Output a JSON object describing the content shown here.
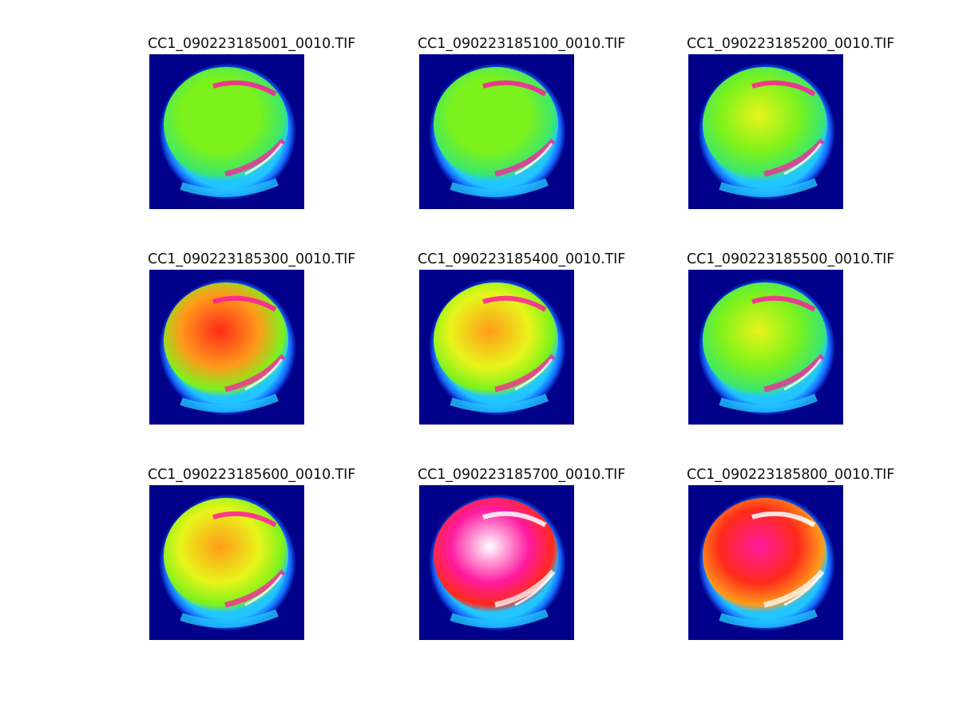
{
  "panels": [
    {
      "title": "CC1_090223185001_0010.TIF",
      "palette": "green"
    },
    {
      "title": "CC1_090223185100_0010.TIF",
      "palette": "green"
    },
    {
      "title": "CC1_090223185200_0010.TIF",
      "palette": "yellowgreen"
    },
    {
      "title": "CC1_090223185300_0010.TIF",
      "palette": "red"
    },
    {
      "title": "CC1_090223185400_0010.TIF",
      "palette": "orange"
    },
    {
      "title": "CC1_090223185500_0010.TIF",
      "palette": "yellowgreen"
    },
    {
      "title": "CC1_090223185600_0010.TIF",
      "palette": "orange"
    },
    {
      "title": "CC1_090223185700_0010.TIF",
      "palette": "white"
    },
    {
      "title": "CC1_090223185800_0010.TIF",
      "palette": "redpink"
    }
  ],
  "colors": {
    "background": "#01008a",
    "rim_cyan": "#22c6ff",
    "rim_blue": "#1666ff",
    "green": "#7cf21c",
    "yellow": "#e9f51a",
    "orange": "#ff9b1a",
    "red": "#ff2a1a",
    "magenta": "#ff1aa0",
    "white": "#ffffff"
  }
}
